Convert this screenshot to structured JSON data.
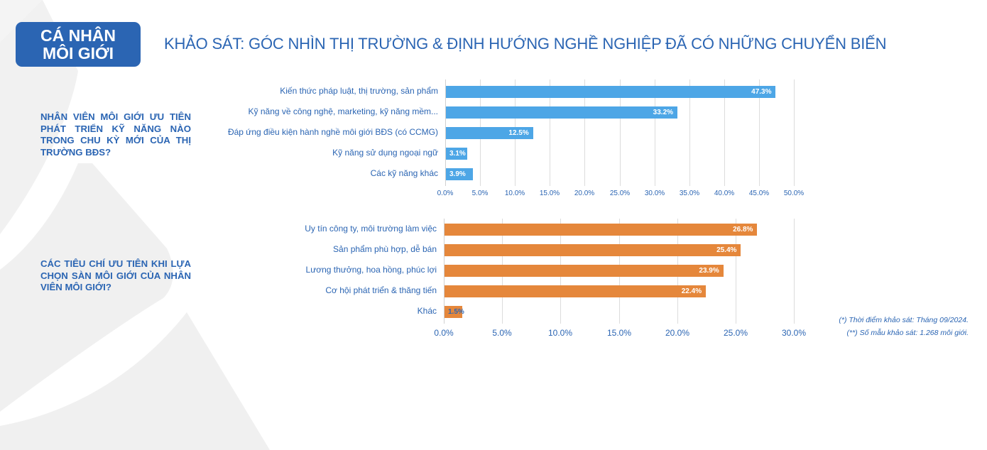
{
  "badge": {
    "line1": "CÁ NHÂN",
    "line2": "MÔI GIỚI"
  },
  "header": {
    "title": "KHẢO SÁT: GÓC NHÌN THỊ TRƯỜNG & ĐỊNH HƯỚNG NGHỀ NGHIỆP ĐÃ CÓ NHỮNG CHUYỂN BIẾN"
  },
  "questions": [
    {
      "text": "NHÂN VIÊN MÔI GIỚI ƯU TIÊN PHÁT TRIỂN KỸ NĂNG NÀO TRONG CHU KỲ MỚI CỦA THỊ TRƯỜNG BĐS?"
    },
    {
      "text": "CÁC TIÊU CHÍ ƯU TIÊN KHI LỰA CHỌN SÀN MÔI GIỚI CỦA NHÂN VIÊN MÔI GIỚI?"
    }
  ],
  "footnotes": {
    "line1": "(*) Thời điểm khảo sát: Tháng 09/2024.",
    "line2": "(**) Số mẫu khảo sát: 1.268 môi giới."
  },
  "colors": {
    "brand": "#2b65b3",
    "series1": "#4da6e6",
    "series2": "#e5873b",
    "grid": "#dcdcdc"
  },
  "chart_data": [
    {
      "type": "bar",
      "orientation": "horizontal",
      "title": "NHÂN VIÊN MÔI GIỚI ƯU TIÊN PHÁT TRIỂN KỸ NĂNG NÀO TRONG CHU KỲ MỚI CỦA THỊ TRƯỜNG BĐS?",
      "categories": [
        "Kiến thức pháp luật, thị trường, sản phẩm",
        "Kỹ năng về công nghệ, marketing, kỹ năng mềm...",
        "Đáp ứng điều kiện hành nghề môi giới BĐS (có CCMG)",
        "Kỹ năng sử dụng ngoại ngữ",
        "Các kỹ năng khác"
      ],
      "values": [
        47.3,
        33.2,
        12.5,
        3.1,
        3.9
      ],
      "value_labels": [
        "47.3%",
        "33.2%",
        "12.5%",
        "3.1%",
        "3.9%"
      ],
      "xlabel": "",
      "ylabel": "",
      "xlim": [
        0,
        50
      ],
      "ticks": [
        "0.0%",
        "5.0%",
        "10.0%",
        "15.0%",
        "20.0%",
        "25.0%",
        "30.0%",
        "35.0%",
        "40.0%",
        "45.0%",
        "50.0%"
      ],
      "grid": true,
      "color": "#4da6e6"
    },
    {
      "type": "bar",
      "orientation": "horizontal",
      "title": "CÁC TIÊU CHÍ ƯU TIÊN KHI LỰA CHỌN SÀN MÔI GIỚI CỦA NHÂN VIÊN MÔI GIỚI?",
      "categories": [
        "Uy tín công ty, môi trường làm việc",
        "Sản phẩm phù hợp, dễ bán",
        "Lương thưởng, hoa hồng, phúc lợi",
        "Cơ hội phát triển & thăng tiến",
        "Khác"
      ],
      "values": [
        26.8,
        25.4,
        23.9,
        22.4,
        1.5
      ],
      "value_labels": [
        "26.8%",
        "25.4%",
        "23.9%",
        "22.4%",
        "1.5%"
      ],
      "xlabel": "",
      "ylabel": "",
      "xlim": [
        0,
        30
      ],
      "ticks": [
        "0.0%",
        "5.0%",
        "10.0%",
        "15.0%",
        "20.0%",
        "25.0%",
        "30.0%"
      ],
      "grid": true,
      "color": "#e5873b"
    }
  ]
}
